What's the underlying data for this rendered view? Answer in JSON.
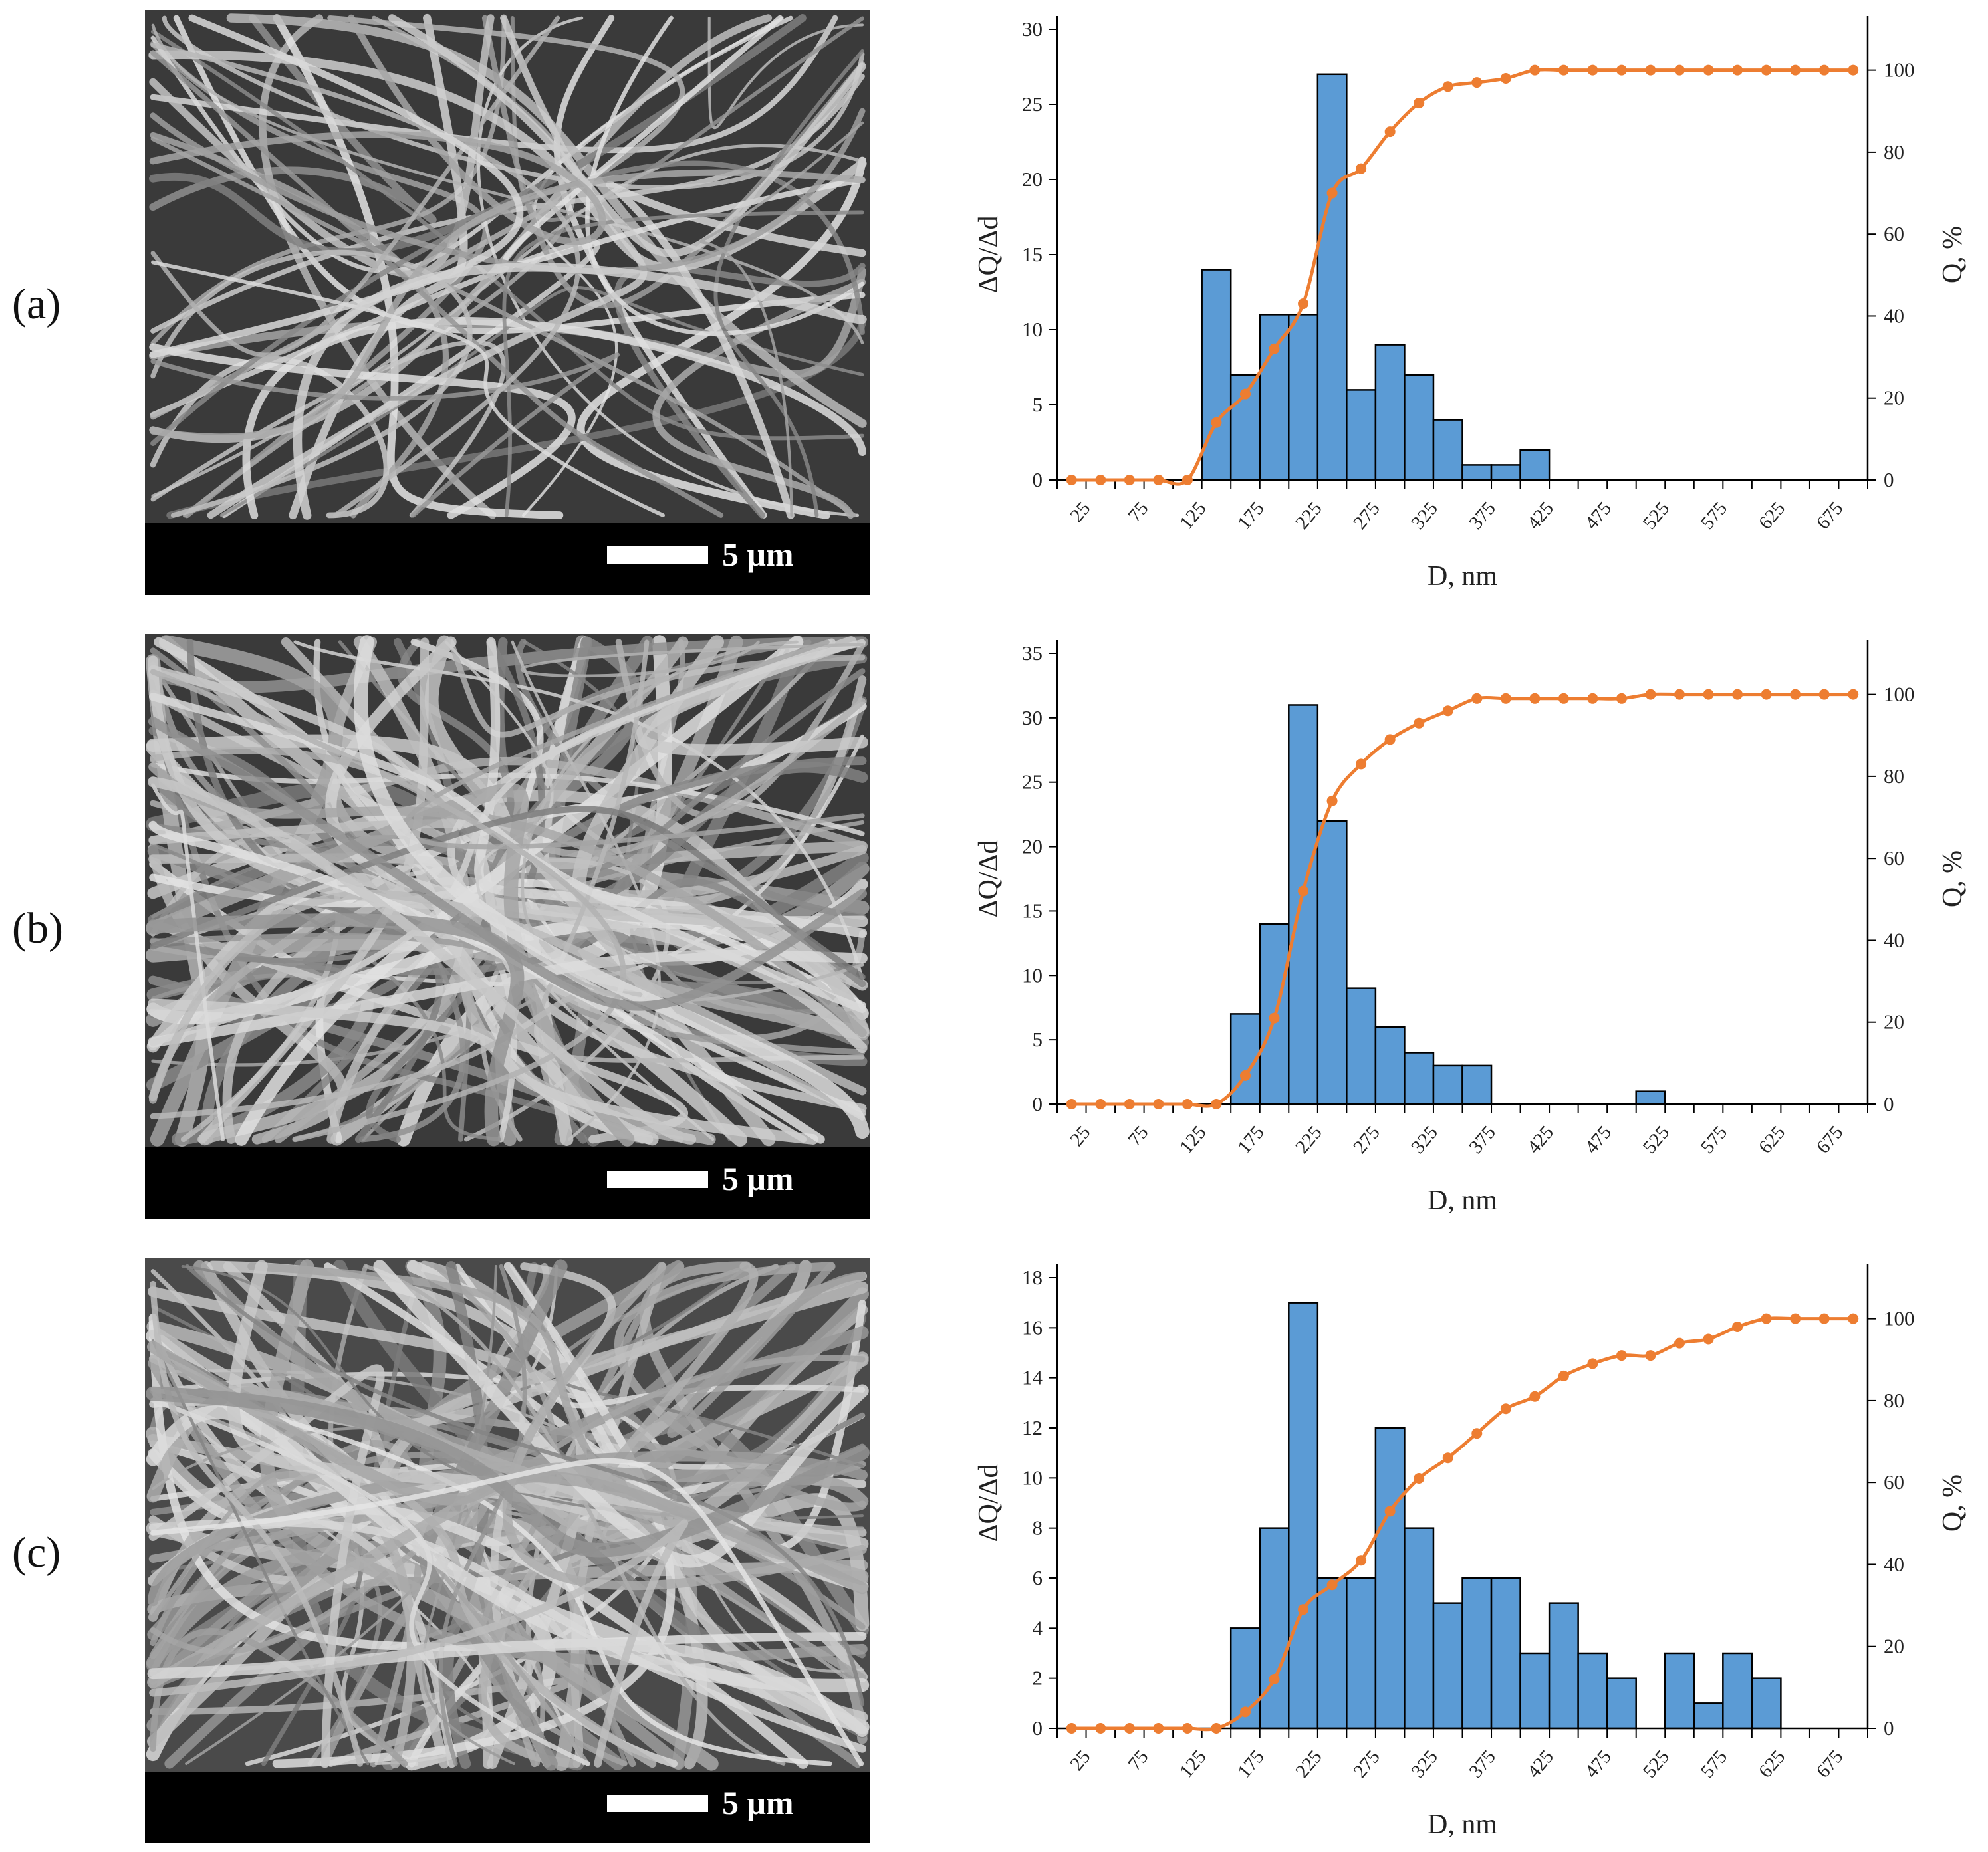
{
  "panels": [
    {
      "label": "(a)",
      "scale_text": "5 μm"
    },
    {
      "label": "(b)",
      "scale_text": "5 μm"
    },
    {
      "label": "(c)",
      "scale_text": "5 μm"
    }
  ],
  "colors": {
    "bar": "#5B9BD5",
    "line": "#ED7D31",
    "axis": "#000000"
  },
  "chart_data": [
    {
      "type": "bar+line",
      "title": "",
      "xlabel": "D, nm",
      "ylabel": "ΔQ/Δd",
      "y2label": "Q, %",
      "categories": [
        25,
        50,
        75,
        100,
        125,
        150,
        175,
        200,
        225,
        250,
        275,
        300,
        325,
        350,
        375,
        400,
        425,
        450,
        475,
        500,
        525,
        550,
        575,
        600,
        625,
        650,
        675,
        700
      ],
      "xtick_labels": [
        "25",
        "75",
        "125",
        "175",
        "225",
        "275",
        "325",
        "375",
        "425",
        "475",
        "525",
        "575",
        "625",
        "675"
      ],
      "ylim": [
        0,
        30
      ],
      "yticks": [
        0,
        5,
        10,
        15,
        20,
        25,
        30
      ],
      "y2lim": [
        0,
        110
      ],
      "y2ticks": [
        0,
        20,
        40,
        60,
        80,
        100
      ],
      "series": [
        {
          "name": "ΔQ/Δd",
          "type": "bar",
          "values": [
            0,
            0,
            0,
            0,
            0,
            14,
            7,
            11,
            11,
            27,
            6,
            9,
            7,
            4,
            1,
            1,
            2,
            0,
            0,
            0,
            0,
            0,
            0,
            0,
            0,
            0,
            0,
            0
          ]
        },
        {
          "name": "Q, %",
          "type": "line",
          "axis": "right",
          "values": [
            0,
            0,
            0,
            0,
            0,
            14,
            21,
            32,
            43,
            70,
            76,
            85,
            92,
            96,
            97,
            98,
            100,
            100,
            100,
            100,
            100,
            100,
            100,
            100,
            100,
            100,
            100,
            100
          ]
        }
      ]
    },
    {
      "type": "bar+line",
      "title": "",
      "xlabel": "D, nm",
      "ylabel": "ΔQ/Δd",
      "y2label": "Q, %",
      "categories": [
        25,
        50,
        75,
        100,
        125,
        150,
        175,
        200,
        225,
        250,
        275,
        300,
        325,
        350,
        375,
        400,
        425,
        450,
        475,
        500,
        525,
        550,
        575,
        600,
        625,
        650,
        675,
        700
      ],
      "xtick_labels": [
        "25",
        "75",
        "125",
        "175",
        "225",
        "275",
        "325",
        "375",
        "425",
        "475",
        "525",
        "575",
        "625",
        "675"
      ],
      "ylim": [
        0,
        35
      ],
      "yticks": [
        0,
        5,
        10,
        15,
        20,
        25,
        30,
        35
      ],
      "y2lim": [
        0,
        110
      ],
      "y2ticks": [
        0,
        20,
        40,
        60,
        80,
        100
      ],
      "series": [
        {
          "name": "ΔQ/Δd",
          "type": "bar",
          "values": [
            0,
            0,
            0,
            0,
            0,
            0,
            7,
            14,
            31,
            22,
            9,
            6,
            4,
            3,
            3,
            0,
            0,
            0,
            0,
            0,
            1,
            0,
            0,
            0,
            0,
            0,
            0,
            0
          ]
        },
        {
          "name": "Q, %",
          "type": "line",
          "axis": "right",
          "values": [
            0,
            0,
            0,
            0,
            0,
            0,
            7,
            21,
            52,
            74,
            83,
            89,
            93,
            96,
            99,
            99,
            99,
            99,
            99,
            99,
            100,
            100,
            100,
            100,
            100,
            100,
            100,
            100
          ]
        }
      ]
    },
    {
      "type": "bar+line",
      "title": "",
      "xlabel": "D, nm",
      "ylabel": "ΔQ/Δd",
      "y2label": "Q, %",
      "categories": [
        25,
        50,
        75,
        100,
        125,
        150,
        175,
        200,
        225,
        250,
        275,
        300,
        325,
        350,
        375,
        400,
        425,
        450,
        475,
        500,
        525,
        550,
        575,
        600,
        625,
        650,
        675,
        700
      ],
      "xtick_labels": [
        "25",
        "75",
        "125",
        "175",
        "225",
        "275",
        "325",
        "375",
        "425",
        "475",
        "525",
        "575",
        "625",
        "675"
      ],
      "ylim": [
        0,
        18
      ],
      "yticks": [
        0,
        2,
        4,
        6,
        8,
        10,
        12,
        14,
        16,
        18
      ],
      "y2lim": [
        0,
        110
      ],
      "y2ticks": [
        0,
        20,
        40,
        60,
        80,
        100
      ],
      "series": [
        {
          "name": "ΔQ/Δd",
          "type": "bar",
          "values": [
            0,
            0,
            0,
            0,
            0,
            0,
            4,
            8,
            17,
            6,
            6,
            12,
            8,
            5,
            6,
            6,
            3,
            5,
            3,
            2,
            0,
            3,
            1,
            3,
            2,
            0,
            0,
            0
          ]
        },
        {
          "name": "Q, %",
          "type": "line",
          "axis": "right",
          "values": [
            0,
            0,
            0,
            0,
            0,
            0,
            4,
            12,
            29,
            35,
            41,
            53,
            61,
            66,
            72,
            78,
            81,
            86,
            89,
            91,
            91,
            94,
            95,
            98,
            100,
            100,
            100,
            100
          ]
        }
      ]
    }
  ]
}
